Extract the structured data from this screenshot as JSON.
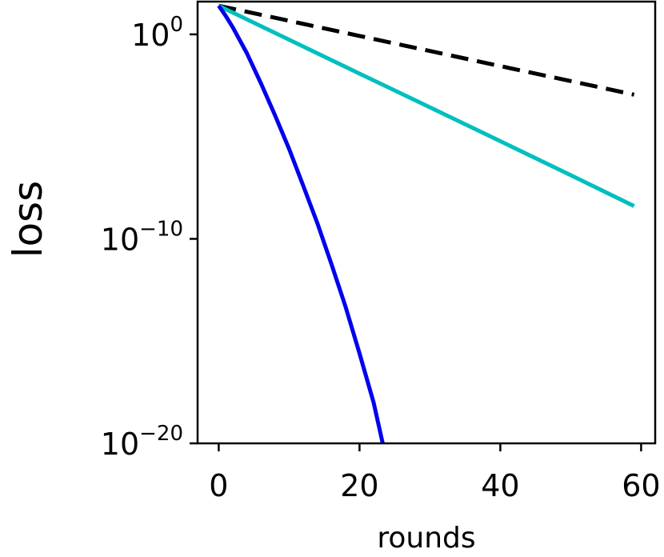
{
  "chart_data": {
    "type": "line",
    "title": "",
    "xlabel": "rounds",
    "ylabel": "loss",
    "y_scale": "log",
    "xlim": [
      -3,
      62
    ],
    "ylim": [
      1e-20,
      40
    ],
    "x_ticks": [
      {
        "value": 0,
        "label": "0"
      },
      {
        "value": 20,
        "label": "20"
      },
      {
        "value": 40,
        "label": "40"
      },
      {
        "value": 60,
        "label": "60"
      }
    ],
    "y_ticks": [
      {
        "value": 1,
        "base": "10",
        "exp": "0"
      },
      {
        "value": 1e-10,
        "base": "10",
        "exp": "−10"
      },
      {
        "value": 1e-20,
        "base": "10",
        "exp": "−20"
      }
    ],
    "grid": false,
    "series": [
      {
        "color": "#000000",
        "style": "dashed",
        "x": [
          0,
          10,
          20,
          30,
          40,
          50,
          59
        ],
        "y": [
          25,
          4.6,
          0.84,
          0.154,
          0.028,
          0.0052,
          0.00112
        ]
      },
      {
        "color": "#00bfbf",
        "style": "solid",
        "x": [
          0,
          10,
          20,
          30,
          40,
          50,
          59
        ],
        "y": [
          25,
          0.55,
          0.012,
          0.00027,
          6e-06,
          1.3e-07,
          4e-09
        ]
      },
      {
        "color": "#0000ee",
        "style": "solid",
        "x": [
          0,
          1,
          2,
          4,
          6,
          8,
          10,
          12,
          14,
          16,
          18,
          20,
          22,
          23.3
        ],
        "y": [
          25,
          8,
          2.2,
          0.12,
          0.004,
          0.00011,
          2.5e-06,
          4e-08,
          6e-10,
          6e-12,
          5e-14,
          2.5e-16,
          1e-18,
          1e-20
        ]
      }
    ]
  }
}
